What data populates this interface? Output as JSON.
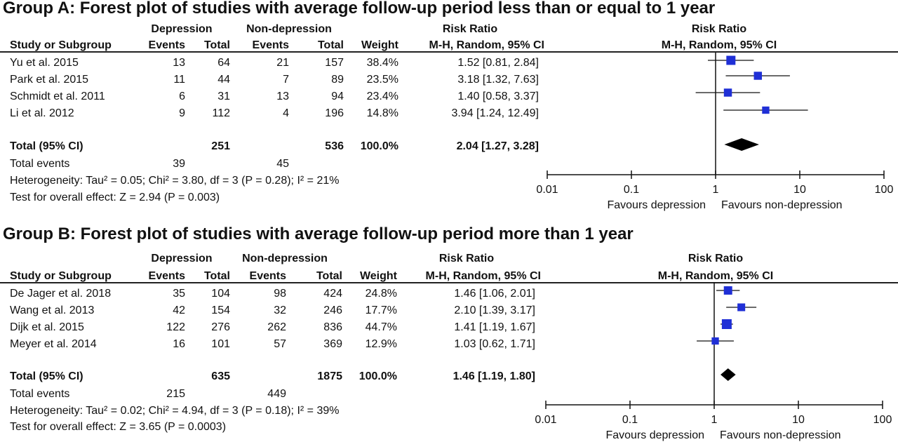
{
  "chart_data": [
    {
      "type": "forest",
      "title": "Group A: Forest plot of studies with average follow-up period less than or equal to 1 year",
      "group_headers": {
        "depression": "Depression",
        "non_depression": "Non-depression",
        "risk_ratio": "Risk Ratio",
        "plot_risk_ratio": "Risk Ratio"
      },
      "columns": {
        "study": "Study or Subgroup",
        "events": "Events",
        "total": "Total",
        "weight": "Weight",
        "ci": "M-H, Random, 95% CI",
        "plot_ci": "M-H, Random, 95% CI"
      },
      "studies": [
        {
          "name": "Yu et al. 2015",
          "dep_events": "13",
          "dep_total": "64",
          "non_events": "21",
          "non_total": "157",
          "weight": "38.4%",
          "ci_text": "1.52 [0.81, 2.84]",
          "rr": 1.52,
          "lo": 0.81,
          "hi": 2.84,
          "w": 38.4
        },
        {
          "name": "Park et al. 2015",
          "dep_events": "11",
          "dep_total": "44",
          "non_events": "7",
          "non_total": "89",
          "weight": "23.5%",
          "ci_text": "3.18 [1.32, 7.63]",
          "rr": 3.18,
          "lo": 1.32,
          "hi": 7.63,
          "w": 23.5
        },
        {
          "name": "Schmidt et al. 2011",
          "dep_events": "6",
          "dep_total": "31",
          "non_events": "13",
          "non_total": "94",
          "weight": "23.4%",
          "ci_text": "1.40 [0.58, 3.37]",
          "rr": 1.4,
          "lo": 0.58,
          "hi": 3.37,
          "w": 23.4
        },
        {
          "name": "Li et al. 2012",
          "dep_events": "9",
          "dep_total": "112",
          "non_events": "4",
          "non_total": "196",
          "weight": "14.8%",
          "ci_text": "3.94 [1.24, 12.49]",
          "rr": 3.94,
          "lo": 1.24,
          "hi": 12.49,
          "w": 14.8
        }
      ],
      "total": {
        "label": "Total (95% CI)",
        "dep_total": "251",
        "non_total": "536",
        "weight": "100.0%",
        "ci_text": "2.04 [1.27, 3.28]",
        "rr": 2.04,
        "lo": 1.27,
        "hi": 3.28
      },
      "total_events": {
        "label": "Total events",
        "dep": "39",
        "non": "45"
      },
      "heterogeneity": "Heterogeneity: Tau² = 0.05; Chi² = 3.80, df = 3 (P = 0.28); I² = 21%",
      "overall_effect": "Test for overall effect: Z = 2.94 (P = 0.003)",
      "axis": {
        "scale": "log",
        "ticks": [
          0.01,
          0.1,
          1,
          10,
          100
        ],
        "tick_labels": [
          "0.01",
          "0.1",
          "1",
          "10",
          "100"
        ],
        "xlim": [
          0.01,
          100
        ]
      },
      "favours_left": "Favours depression",
      "favours_right": "Favours non-depression"
    },
    {
      "type": "forest",
      "title": "Group B: Forest plot of studies with average follow-up period more than 1 year",
      "group_headers": {
        "depression": "Depression",
        "non_depression": "Non-depression",
        "risk_ratio": "Risk Ratio",
        "plot_risk_ratio": "Risk Ratio"
      },
      "columns": {
        "study": "Study or Subgroup",
        "events": "Events",
        "total": "Total",
        "weight": "Weight",
        "ci": "M-H, Random, 95% CI",
        "plot_ci": "M-H, Random, 95% CI"
      },
      "studies": [
        {
          "name": "De Jager et al. 2018",
          "dep_events": "35",
          "dep_total": "104",
          "non_events": "98",
          "non_total": "424",
          "weight": "24.8%",
          "ci_text": "1.46 [1.06, 2.01]",
          "rr": 1.46,
          "lo": 1.06,
          "hi": 2.01,
          "w": 24.8
        },
        {
          "name": "Wang et al. 2013",
          "dep_events": "42",
          "dep_total": "154",
          "non_events": "32",
          "non_total": "246",
          "weight": "17.7%",
          "ci_text": "2.10 [1.39, 3.17]",
          "rr": 2.1,
          "lo": 1.39,
          "hi": 3.17,
          "w": 17.7
        },
        {
          "name": "Dijk et al. 2015",
          "dep_events": "122",
          "dep_total": "276",
          "non_events": "262",
          "non_total": "836",
          "weight": "44.7%",
          "ci_text": "1.41 [1.19, 1.67]",
          "rr": 1.41,
          "lo": 1.19,
          "hi": 1.67,
          "w": 44.7
        },
        {
          "name": "Meyer et al. 2014",
          "dep_events": "16",
          "dep_total": "101",
          "non_events": "57",
          "non_total": "369",
          "weight": "12.9%",
          "ci_text": "1.03 [0.62, 1.71]",
          "rr": 1.03,
          "lo": 0.62,
          "hi": 1.71,
          "w": 12.9
        }
      ],
      "total": {
        "label": "Total (95% CI)",
        "dep_total": "635",
        "non_total": "1875",
        "weight": "100.0%",
        "ci_text": "1.46 [1.19, 1.80]",
        "rr": 1.46,
        "lo": 1.19,
        "hi": 1.8
      },
      "total_events": {
        "label": "Total events",
        "dep": "215",
        "non": "449"
      },
      "heterogeneity": "Heterogeneity: Tau² = 0.02; Chi² = 4.94, df = 3 (P = 0.18); I² = 39%",
      "overall_effect": "Test for overall effect: Z = 3.65 (P = 0.0003)",
      "axis": {
        "scale": "log",
        "ticks": [
          0.01,
          0.1,
          1,
          10,
          100
        ],
        "tick_labels": [
          "0.01",
          "0.1",
          "1",
          "10",
          "100"
        ],
        "xlim": [
          0.01,
          100
        ]
      },
      "favours_left": "Favours depression",
      "favours_right": "Favours non-depression"
    }
  ],
  "colors": {
    "study_marker": "#1f2fd6",
    "diamond": "#000000",
    "line": "#111111"
  }
}
